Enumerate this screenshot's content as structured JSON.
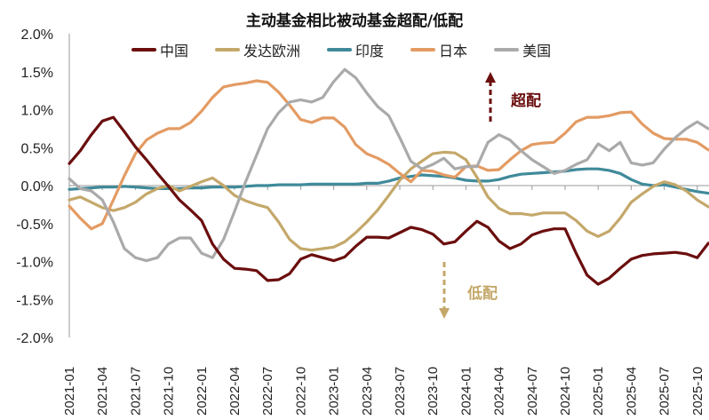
{
  "chart_data": {
    "type": "line",
    "title": "主动基金相比被动基金超配/低配",
    "xlabel": "",
    "ylabel": "",
    "ylim": [
      -2.0,
      2.0
    ],
    "y_ticks": [
      "2.0%",
      "1.5%",
      "1.0%",
      "0.5%",
      "0.0%",
      "-0.5%",
      "-1.0%",
      "-1.5%",
      "-2.0%"
    ],
    "y_tick_values": [
      2.0,
      1.5,
      1.0,
      0.5,
      0.0,
      -0.5,
      -1.0,
      -1.5,
      -2.0
    ],
    "x_ticks": [
      "2021-01",
      "2021-04",
      "2021-07",
      "2021-10",
      "2022-01",
      "2022-04",
      "2022-07",
      "2022-10",
      "2023-01",
      "2023-04",
      "2023-07",
      "2023-10",
      "2024-01",
      "2024-04",
      "2024-07",
      "2024-10",
      "2025-01",
      "2025-04",
      "2025-07",
      "2025-10"
    ],
    "x": [
      "2021-01",
      "2021-02",
      "2021-03",
      "2021-04",
      "2021-05",
      "2021-06",
      "2021-07",
      "2021-08",
      "2021-09",
      "2021-10",
      "2021-11",
      "2021-12",
      "2022-01",
      "2022-02",
      "2022-03",
      "2022-04",
      "2022-05",
      "2022-06",
      "2022-07",
      "2022-08",
      "2022-09",
      "2022-10",
      "2022-11",
      "2022-12",
      "2023-01",
      "2023-02",
      "2023-03",
      "2023-04",
      "2023-05",
      "2023-06",
      "2023-07",
      "2023-08",
      "2023-09",
      "2023-10",
      "2023-11",
      "2023-12",
      "2024-01",
      "2024-02",
      "2024-03",
      "2024-04",
      "2024-05",
      "2024-06",
      "2024-07",
      "2024-08",
      "2024-09",
      "2024-10",
      "2024-11",
      "2024-12",
      "2025-01",
      "2025-02",
      "2025-03",
      "2025-04",
      "2025-05",
      "2025-06",
      "2025-07",
      "2025-08",
      "2025-09",
      "2025-10",
      "2025-11"
    ],
    "legend_position": "top",
    "grid": false,
    "series": [
      {
        "name": "中国",
        "color": "#6b0e0e",
        "values": [
          0.29,
          0.46,
          0.67,
          0.85,
          0.9,
          0.71,
          0.51,
          0.34,
          0.16,
          -0.01,
          -0.19,
          -0.32,
          -0.46,
          -0.77,
          -0.97,
          -1.09,
          -1.1,
          -1.12,
          -1.25,
          -1.24,
          -1.16,
          -0.97,
          -0.91,
          -0.95,
          -0.99,
          -0.94,
          -0.8,
          -0.68,
          -0.68,
          -0.69,
          -0.62,
          -0.55,
          -0.58,
          -0.64,
          -0.77,
          -0.74,
          -0.6,
          -0.47,
          -0.55,
          -0.73,
          -0.83,
          -0.77,
          -0.65,
          -0.6,
          -0.57,
          -0.57,
          -0.89,
          -1.18,
          -1.3,
          -1.22,
          -1.09,
          -0.97,
          -0.92,
          -0.9,
          -0.89,
          -0.88,
          -0.9,
          -0.95,
          -0.76
        ]
      },
      {
        "name": "发达欧洲",
        "color": "#c4a86a",
        "values": [
          -0.19,
          -0.15,
          -0.22,
          -0.29,
          -0.33,
          -0.29,
          -0.22,
          -0.11,
          -0.04,
          0.0,
          -0.07,
          -0.01,
          0.05,
          0.1,
          0.0,
          -0.13,
          -0.2,
          -0.25,
          -0.29,
          -0.48,
          -0.71,
          -0.83,
          -0.85,
          -0.83,
          -0.81,
          -0.74,
          -0.62,
          -0.48,
          -0.32,
          -0.13,
          0.07,
          0.22,
          0.32,
          0.42,
          0.44,
          0.43,
          0.34,
          0.11,
          -0.15,
          -0.3,
          -0.37,
          -0.37,
          -0.39,
          -0.36,
          -0.36,
          -0.36,
          -0.46,
          -0.6,
          -0.67,
          -0.6,
          -0.43,
          -0.22,
          -0.11,
          -0.01,
          0.05,
          0.01,
          -0.07,
          -0.19,
          -0.28
        ]
      },
      {
        "name": "印度",
        "color": "#3f8a9a",
        "values": [
          -0.05,
          -0.04,
          -0.03,
          -0.02,
          -0.02,
          -0.01,
          -0.02,
          -0.03,
          -0.04,
          -0.04,
          -0.04,
          -0.03,
          -0.03,
          -0.02,
          -0.02,
          -0.02,
          -0.01,
          0.0,
          0.0,
          0.01,
          0.01,
          0.01,
          0.02,
          0.02,
          0.02,
          0.02,
          0.02,
          0.03,
          0.03,
          0.06,
          0.1,
          0.12,
          0.14,
          0.13,
          0.12,
          0.1,
          0.07,
          0.06,
          0.06,
          0.08,
          0.12,
          0.15,
          0.16,
          0.17,
          0.18,
          0.19,
          0.21,
          0.22,
          0.22,
          0.2,
          0.16,
          0.08,
          0.02,
          0.0,
          0.01,
          -0.02,
          -0.05,
          -0.08,
          -0.1
        ]
      },
      {
        "name": "日本",
        "color": "#e39b63",
        "values": [
          -0.27,
          -0.43,
          -0.57,
          -0.5,
          -0.19,
          0.13,
          0.42,
          0.6,
          0.69,
          0.75,
          0.75,
          0.83,
          0.98,
          1.16,
          1.3,
          1.33,
          1.35,
          1.38,
          1.36,
          1.23,
          1.06,
          0.87,
          0.83,
          0.89,
          0.89,
          0.77,
          0.54,
          0.42,
          0.36,
          0.28,
          0.16,
          0.05,
          0.2,
          0.19,
          0.14,
          0.11,
          0.25,
          0.26,
          0.2,
          0.21,
          0.34,
          0.46,
          0.54,
          0.56,
          0.57,
          0.69,
          0.84,
          0.9,
          0.9,
          0.92,
          0.96,
          0.97,
          0.81,
          0.69,
          0.62,
          0.61,
          0.61,
          0.57,
          0.47
        ]
      },
      {
        "name": "美国",
        "color": "#aaaaaa",
        "values": [
          0.09,
          -0.04,
          -0.07,
          -0.19,
          -0.48,
          -0.83,
          -0.95,
          -0.99,
          -0.95,
          -0.77,
          -0.69,
          -0.69,
          -0.89,
          -0.95,
          -0.71,
          -0.34,
          0.05,
          0.4,
          0.75,
          0.96,
          1.1,
          1.13,
          1.1,
          1.16,
          1.37,
          1.53,
          1.42,
          1.22,
          1.04,
          0.92,
          0.63,
          0.32,
          0.22,
          0.28,
          0.36,
          0.22,
          0.25,
          0.25,
          0.57,
          0.67,
          0.6,
          0.46,
          0.34,
          0.25,
          0.16,
          0.2,
          0.28,
          0.34,
          0.55,
          0.46,
          0.57,
          0.3,
          0.27,
          0.3,
          0.48,
          0.63,
          0.75,
          0.84,
          0.75
        ]
      }
    ],
    "annotations": [
      {
        "text": "超配",
        "color": "#6b0e0e",
        "arrow": "up"
      },
      {
        "text": "低配",
        "color": "#c4a86a",
        "arrow": "down"
      }
    ]
  }
}
